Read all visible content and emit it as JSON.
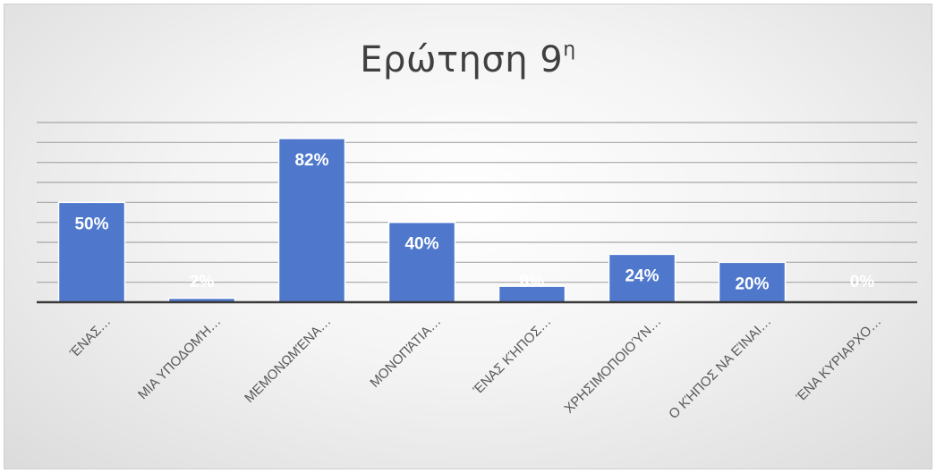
{
  "chart_data": {
    "type": "bar",
    "title": "Ερώτηση 9",
    "title_superscript": "η",
    "categories": [
      "ΈΝΑΣ…",
      "ΜΙΑ ΥΠΟΔΟΜΉ…",
      "ΜΕΜΟΝΩΜΈΝΑ…",
      "ΜΟΝΟΠΆΤΙΑ…",
      "ΈΝΑΣ ΚΉΠΟΣ…",
      "ΧΡΗΣΙΜΟΠΟΙΟΎΝ…",
      "Ο ΚΉΠΟΣ ΝΑ ΕΊΝΑΙ…",
      "ΈΝΑ ΚΥΡΙΑΡΧΟ…"
    ],
    "values": [
      50,
      2,
      82,
      40,
      8,
      24,
      20,
      0
    ],
    "data_labels": [
      "50%",
      "2%",
      "82%",
      "40%",
      "8%",
      "24%",
      "20%",
      "0%"
    ],
    "ylim": [
      0,
      90
    ],
    "gridlines": true,
    "legend": false,
    "colors": {
      "bar": "#4F78CC",
      "bar_edge": "#ffffff",
      "grid": "#a6a6a6",
      "axis": "#3a3a3a",
      "label": "#ffffff",
      "category_text": "#595959"
    }
  }
}
